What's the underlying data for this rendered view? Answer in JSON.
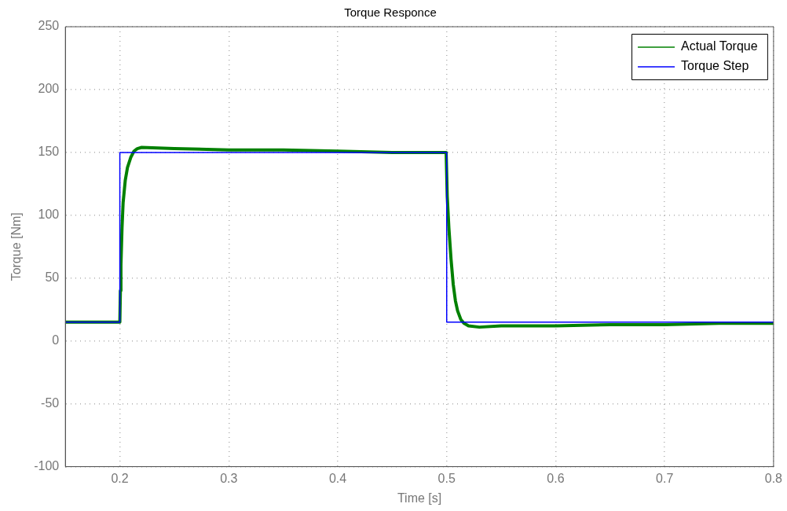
{
  "chart_data": {
    "type": "line",
    "title": "Torque Responce",
    "xlabel": "Time [s]",
    "ylabel": "Torque [Nm]",
    "xlim": [
      0.15,
      0.8
    ],
    "xticks": [
      0.2,
      0.3,
      0.4,
      0.5,
      0.6,
      0.7,
      0.8
    ],
    "ylim": [
      -100,
      250
    ],
    "yticks": [
      -100,
      -50,
      0,
      50,
      100,
      150,
      200,
      250
    ],
    "grid": true,
    "line_style": "solid",
    "legend": "top right",
    "series": [
      {
        "name": "Actual Torque",
        "color": "#008000",
        "type": "line",
        "x": [
          0.15,
          0.2,
          0.2005,
          0.201,
          0.202,
          0.203,
          0.205,
          0.207,
          0.21,
          0.213,
          0.216,
          0.22,
          0.25,
          0.3,
          0.35,
          0.4,
          0.45,
          0.4995,
          0.5005,
          0.502,
          0.504,
          0.506,
          0.508,
          0.51,
          0.513,
          0.516,
          0.52,
          0.53,
          0.55,
          0.6,
          0.65,
          0.7,
          0.75,
          0.8
        ],
        "values": [
          15,
          15,
          40,
          60,
          90,
          110,
          128,
          138,
          146,
          151,
          153,
          154,
          153,
          152,
          152,
          151,
          150,
          150,
          115,
          90,
          65,
          45,
          32,
          24,
          17,
          14,
          12,
          11,
          12,
          12,
          13,
          13,
          14,
          14
        ]
      },
      {
        "name": "Torque Step",
        "color": "#0000ff",
        "type": "step",
        "x": [
          0.15,
          0.2,
          0.5,
          0.8
        ],
        "values": [
          15,
          150,
          15,
          15
        ]
      }
    ]
  }
}
